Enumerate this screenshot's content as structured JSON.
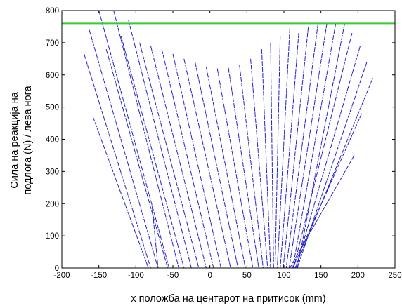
{
  "chart_data": {
    "type": "line",
    "title": "",
    "xlabel": "x положба на центарот на притисок (mm)",
    "ylabel_lines": [
      "Сила на реакција на",
      "подлога (N) / лева нога"
    ],
    "xlim": [
      -200,
      250
    ],
    "ylim": [
      0,
      800
    ],
    "xticks": [
      "-200",
      "-150",
      "-100",
      "-50",
      "0",
      "50",
      "100",
      "150",
      "200",
      "250"
    ],
    "yticks": [
      "0",
      "100",
      "200",
      "300",
      "400",
      "500",
      "600",
      "700",
      "800"
    ],
    "grid": false,
    "reference_line": {
      "y": 760,
      "color": "#33cc33"
    },
    "series_color": "#2222cc",
    "segments": [
      [
        [
          -170,
          665
        ],
        [
          -80,
          0
        ]
      ],
      [
        [
          -163,
          740
        ],
        [
          -70,
          0
        ]
      ],
      [
        [
          -158,
          470
        ],
        [
          -83,
          0
        ]
      ],
      [
        [
          -150,
          800
        ],
        [
          -55,
          0
        ]
      ],
      [
        [
          -140,
          680
        ],
        [
          -57,
          0
        ]
      ],
      [
        [
          -130,
          800
        ],
        [
          -42,
          0
        ]
      ],
      [
        [
          -120,
          720
        ],
        [
          -35,
          0
        ]
      ],
      [
        [
          -110,
          770
        ],
        [
          -25,
          0
        ]
      ],
      [
        [
          -95,
          700
        ],
        [
          -15,
          0
        ]
      ],
      [
        [
          -80,
          690
        ],
        [
          -5,
          0
        ]
      ],
      [
        [
          -65,
          680
        ],
        [
          5,
          0
        ]
      ],
      [
        [
          -50,
          665
        ],
        [
          15,
          0
        ]
      ],
      [
        [
          -35,
          650
        ],
        [
          28,
          0
        ]
      ],
      [
        [
          -20,
          640
        ],
        [
          38,
          0
        ]
      ],
      [
        [
          -5,
          625
        ],
        [
          48,
          0
        ]
      ],
      [
        [
          10,
          620
        ],
        [
          58,
          0
        ]
      ],
      [
        [
          25,
          622
        ],
        [
          66,
          0
        ]
      ],
      [
        [
          40,
          630
        ],
        [
          72,
          0
        ]
      ],
      [
        [
          55,
          650
        ],
        [
          78,
          0
        ]
      ],
      [
        [
          70,
          680
        ],
        [
          82,
          0
        ]
      ],
      [
        [
          82,
          700
        ],
        [
          86,
          0
        ]
      ],
      [
        [
          95,
          720
        ],
        [
          88,
          0
        ]
      ],
      [
        [
          108,
          745
        ],
        [
          91,
          0
        ]
      ],
      [
        [
          120,
          730
        ],
        [
          95,
          0
        ]
      ],
      [
        [
          133,
          750
        ],
        [
          99,
          0
        ]
      ],
      [
        [
          146,
          760
        ],
        [
          103,
          0
        ]
      ],
      [
        [
          158,
          760
        ],
        [
          107,
          0
        ]
      ],
      [
        [
          170,
          760
        ],
        [
          112,
          0
        ]
      ],
      [
        [
          182,
          760
        ],
        [
          118,
          0
        ]
      ],
      [
        [
          192,
          730
        ],
        [
          113,
          0
        ]
      ],
      [
        [
          203,
          690
        ],
        [
          116,
          0
        ]
      ],
      [
        [
          212,
          640
        ],
        [
          118,
          0
        ]
      ],
      [
        [
          220,
          590
        ],
        [
          115,
          0
        ]
      ],
      [
        [
          205,
          480
        ],
        [
          112,
          0
        ]
      ],
      [
        [
          195,
          350
        ],
        [
          108,
          0
        ]
      ],
      [
        [
          -78,
          190
        ],
        [
          -70,
          0
        ]
      ]
    ]
  }
}
